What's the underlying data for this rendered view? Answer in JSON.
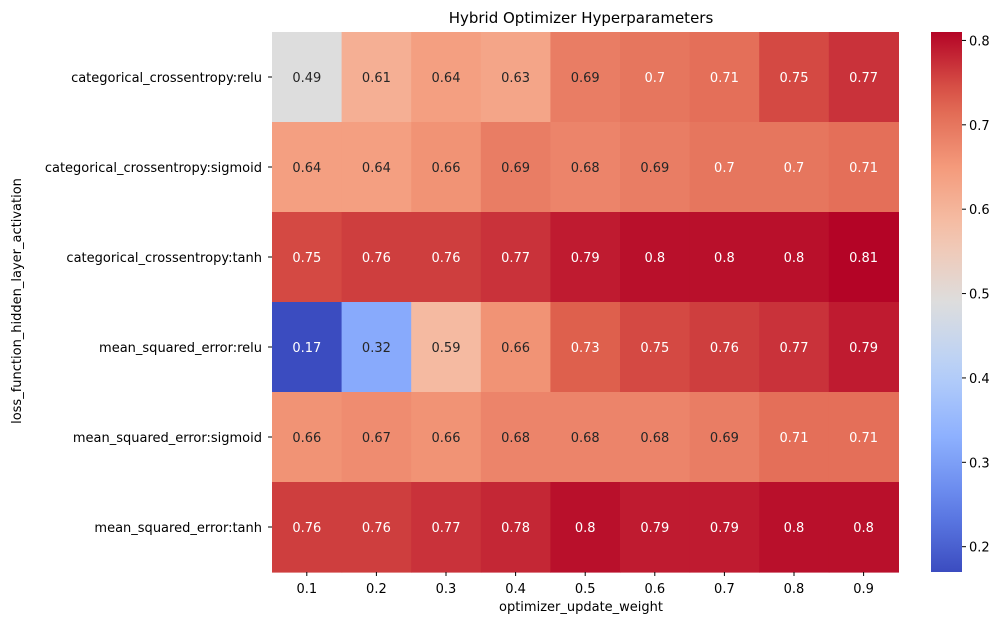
{
  "chart_data": {
    "type": "heatmap",
    "title": "Hybrid Optimizer Hyperparameters",
    "xlabel": "optimizer_update_weight",
    "ylabel": "loss_function_hidden_layer_activation",
    "x_categories": [
      "0.1",
      "0.2",
      "0.3",
      "0.4",
      "0.5",
      "0.6",
      "0.7",
      "0.8",
      "0.9"
    ],
    "y_categories": [
      "categorical_crossentropy:relu",
      "categorical_crossentropy:sigmoid",
      "categorical_crossentropy:tanh",
      "mean_squared_error:relu",
      "mean_squared_error:sigmoid",
      "mean_squared_error:tanh"
    ],
    "values": [
      [
        0.49,
        0.61,
        0.64,
        0.63,
        0.69,
        0.7,
        0.71,
        0.75,
        0.77
      ],
      [
        0.64,
        0.64,
        0.66,
        0.69,
        0.68,
        0.69,
        0.7,
        0.7,
        0.71
      ],
      [
        0.75,
        0.76,
        0.76,
        0.77,
        0.79,
        0.8,
        0.8,
        0.8,
        0.81
      ],
      [
        0.17,
        0.32,
        0.59,
        0.66,
        0.73,
        0.75,
        0.76,
        0.77,
        0.79
      ],
      [
        0.66,
        0.67,
        0.66,
        0.68,
        0.68,
        0.68,
        0.69,
        0.71,
        0.71
      ],
      [
        0.76,
        0.76,
        0.77,
        0.78,
        0.8,
        0.79,
        0.79,
        0.8,
        0.8
      ]
    ],
    "colormap": "coolwarm",
    "colorbar": {
      "vmin": 0.17,
      "vmax": 0.81,
      "ticks": [
        "0.2",
        "0.3",
        "0.4",
        "0.5",
        "0.6",
        "0.7",
        "0.8"
      ],
      "tick_values": [
        0.2,
        0.3,
        0.4,
        0.5,
        0.6,
        0.7,
        0.8
      ]
    },
    "annotations": true,
    "grid": false
  }
}
